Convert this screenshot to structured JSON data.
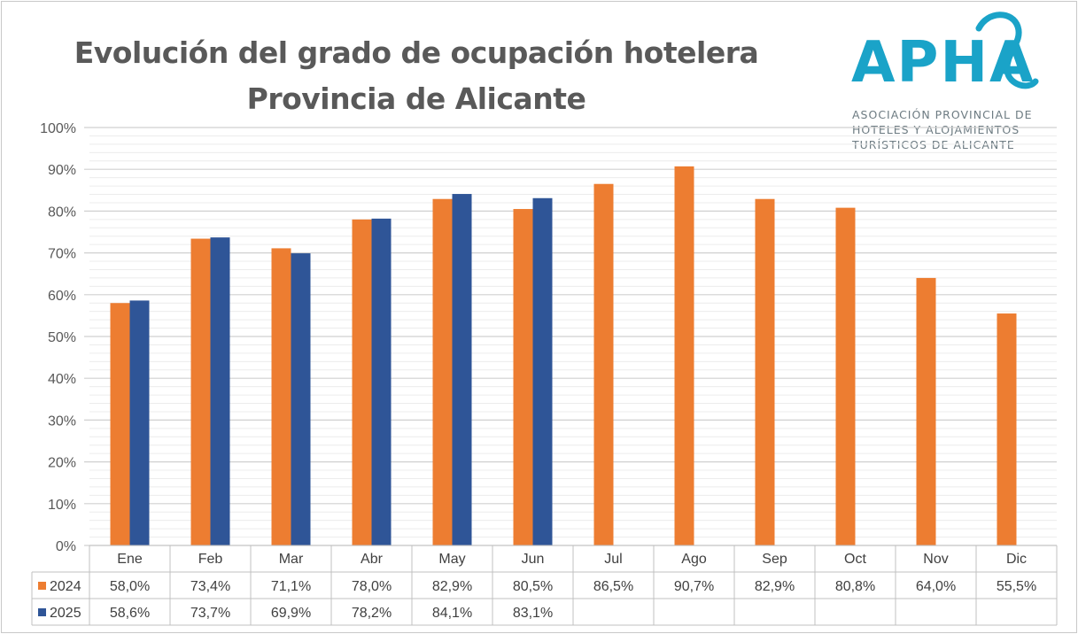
{
  "header": {
    "title_line1": "Evolución del grado de ocupación hotelera",
    "title_line2": "Provincia de Alicante"
  },
  "logo": {
    "name": "APHA",
    "sub1": "ASOCIACIÓN PROVINCIAL DE",
    "sub2": "HOTELES Y ALOJAMIENTOS",
    "sub3": "TURÍSTICOS DE ALICANTE"
  },
  "colors": {
    "s2024": "#ED7D31",
    "s2025": "#2F5597",
    "logo": "#1aa3c8",
    "grid": "#d9d9d9"
  },
  "chart_data": {
    "type": "bar",
    "title": "Evolución del grado de ocupación hotelera Provincia de Alicante",
    "categories": [
      "Ene",
      "Feb",
      "Mar",
      "Abr",
      "May",
      "Jun",
      "Jul",
      "Ago",
      "Sep",
      "Oct",
      "Nov",
      "Dic"
    ],
    "series": [
      {
        "name": "2024",
        "values": [
          58.0,
          73.4,
          71.1,
          78.0,
          82.9,
          80.5,
          86.5,
          90.7,
          82.9,
          80.8,
          64.0,
          55.5
        ],
        "labels": [
          "58,0%",
          "73,4%",
          "71,1%",
          "78,0%",
          "82,9%",
          "80,5%",
          "86,5%",
          "90,7%",
          "82,9%",
          "80,8%",
          "64,0%",
          "55,5%"
        ]
      },
      {
        "name": "2025",
        "values": [
          58.6,
          73.7,
          69.9,
          78.2,
          84.1,
          83.1,
          null,
          null,
          null,
          null,
          null,
          null
        ],
        "labels": [
          "58,6%",
          "73,7%",
          "69,9%",
          "78,2%",
          "84,1%",
          "83,1%",
          "",
          "",
          "",
          "",
          "",
          ""
        ]
      }
    ],
    "yticks": [
      "0%",
      "10%",
      "20%",
      "30%",
      "40%",
      "50%",
      "60%",
      "70%",
      "80%",
      "90%",
      "100%"
    ],
    "ylim": [
      0,
      100
    ],
    "data_table": true,
    "legend": "data-table"
  }
}
